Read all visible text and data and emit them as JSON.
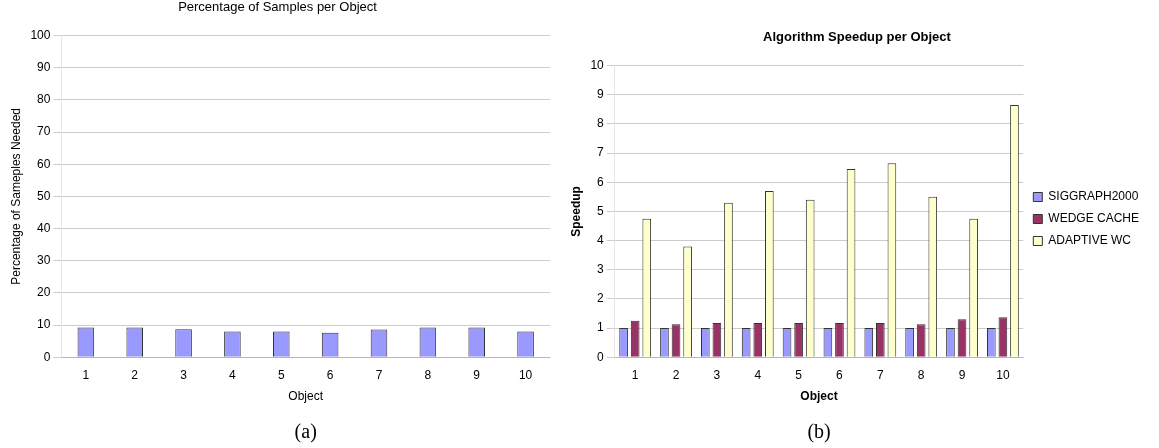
{
  "chart_data": [
    {
      "type": "bar",
      "title": "Percentage of Samples per Object",
      "xlabel": "Object",
      "ylabel": "Percentage of Sameples Needed",
      "categories": [
        "1",
        "2",
        "3",
        "4",
        "5",
        "6",
        "7",
        "8",
        "9",
        "10"
      ],
      "values": [
        9.2,
        9.2,
        8.7,
        8,
        8,
        7.6,
        8.6,
        9.2,
        9.2,
        8
      ],
      "color": "#9999ff",
      "ylim": [
        0,
        100
      ],
      "yticks": [
        0,
        10,
        20,
        30,
        40,
        50,
        60,
        70,
        80,
        90,
        100
      ],
      "grid": "y",
      "legend": false,
      "annotations": [
        "(a)"
      ]
    },
    {
      "type": "bar",
      "title": "Algorithm Speedup per Object",
      "xlabel": "Object",
      "ylabel": "Speedup",
      "categories": [
        "1",
        "2",
        "3",
        "4",
        "5",
        "6",
        "7",
        "8",
        "9",
        "10"
      ],
      "series": [
        {
          "name": "SIGGRAPH2000",
          "color": "#9999ff",
          "values": [
            1,
            1,
            1,
            1,
            1,
            1,
            1,
            1,
            1,
            1
          ]
        },
        {
          "name": "WEDGE CACHE",
          "color": "#993366",
          "values": [
            1.25,
            1.13,
            1.17,
            1.17,
            1.17,
            1.17,
            1.17,
            1.13,
            1.3,
            1.37
          ]
        },
        {
          "name": "ADAPTIVE WC",
          "color": "#ffffcc",
          "values": [
            4.75,
            3.8,
            5.3,
            5.7,
            5.4,
            6.45,
            6.65,
            5.5,
            4.75,
            8.65
          ]
        }
      ],
      "ylim": [
        0,
        10
      ],
      "yticks": [
        0,
        1,
        2,
        3,
        4,
        5,
        6,
        7,
        8,
        9,
        10
      ],
      "grid": "y",
      "legend": "right",
      "annotations": [
        "(b)"
      ]
    }
  ]
}
